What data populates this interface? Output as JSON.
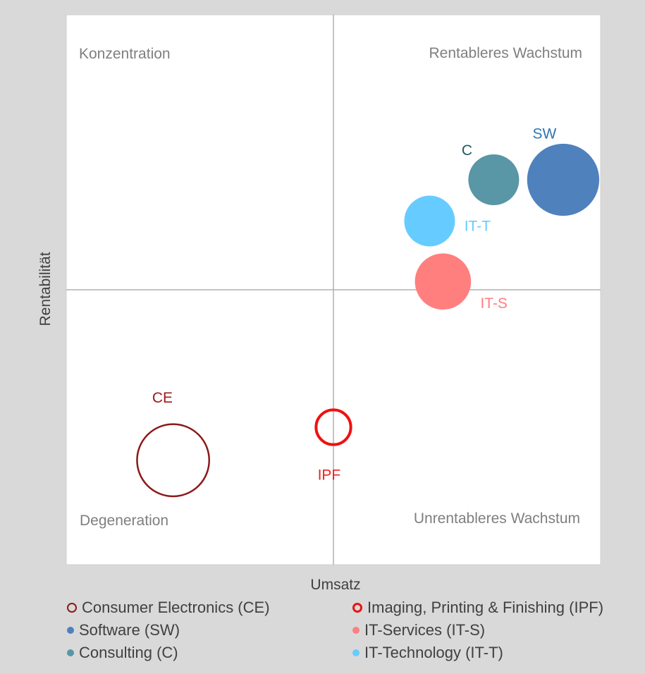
{
  "chart_data": {
    "type": "bubble",
    "title": "",
    "xlabel": "Umsatz",
    "ylabel": "Rentabilität",
    "xlim": [
      0,
      10
    ],
    "ylim": [
      0,
      10
    ],
    "quadrant_lines": {
      "x": 5,
      "y": 5
    },
    "grid": false,
    "legend_position": "bottom",
    "quadrant_labels": [
      {
        "text": "Konzentration",
        "position": "top-left"
      },
      {
        "text": "Rentableres Wachstum",
        "position": "top-right"
      },
      {
        "text": "Degeneration",
        "position": "bottom-left"
      },
      {
        "text": "Unrentableres Wachstum",
        "position": "bottom-right"
      }
    ],
    "series": [
      {
        "name": "Consumer Electronics (CE)",
        "label": "CE",
        "x": 2.0,
        "y": 1.9,
        "size": 1.35,
        "color": "#8b1a1a",
        "style": "outline"
      },
      {
        "name": "Imaging, Printing & Finishing (IPF)",
        "label": "IPF",
        "x": 5.0,
        "y": 2.5,
        "size": 0.65,
        "color": "#ee1111",
        "style": "outline"
      },
      {
        "name": "Software (SW)",
        "label": "SW",
        "x": 9.3,
        "y": 7.0,
        "size": 1.35,
        "color": "#4f81bd",
        "style": "filled"
      },
      {
        "name": "IT-Services (IT-S)",
        "label": "IT-S",
        "x": 7.05,
        "y": 5.15,
        "size": 1.05,
        "color": "#ff7f7f",
        "style": "filled"
      },
      {
        "name": "Consulting (C)",
        "label": "C",
        "x": 8.0,
        "y": 7.0,
        "size": 0.95,
        "color": "#5996a6",
        "style": "filled"
      },
      {
        "name": "IT-Technology (IT-T)",
        "label": "IT-T",
        "x": 6.8,
        "y": 6.25,
        "size": 0.95,
        "color": "#66ccff",
        "style": "filled"
      }
    ]
  },
  "label_colors": {
    "CE": "#a01a1a",
    "IPF": "#ee2222",
    "SW": "#2e75b6",
    "IT-S": "#ff7f7f",
    "C": "#215968",
    "IT-T": "#66ccff"
  }
}
